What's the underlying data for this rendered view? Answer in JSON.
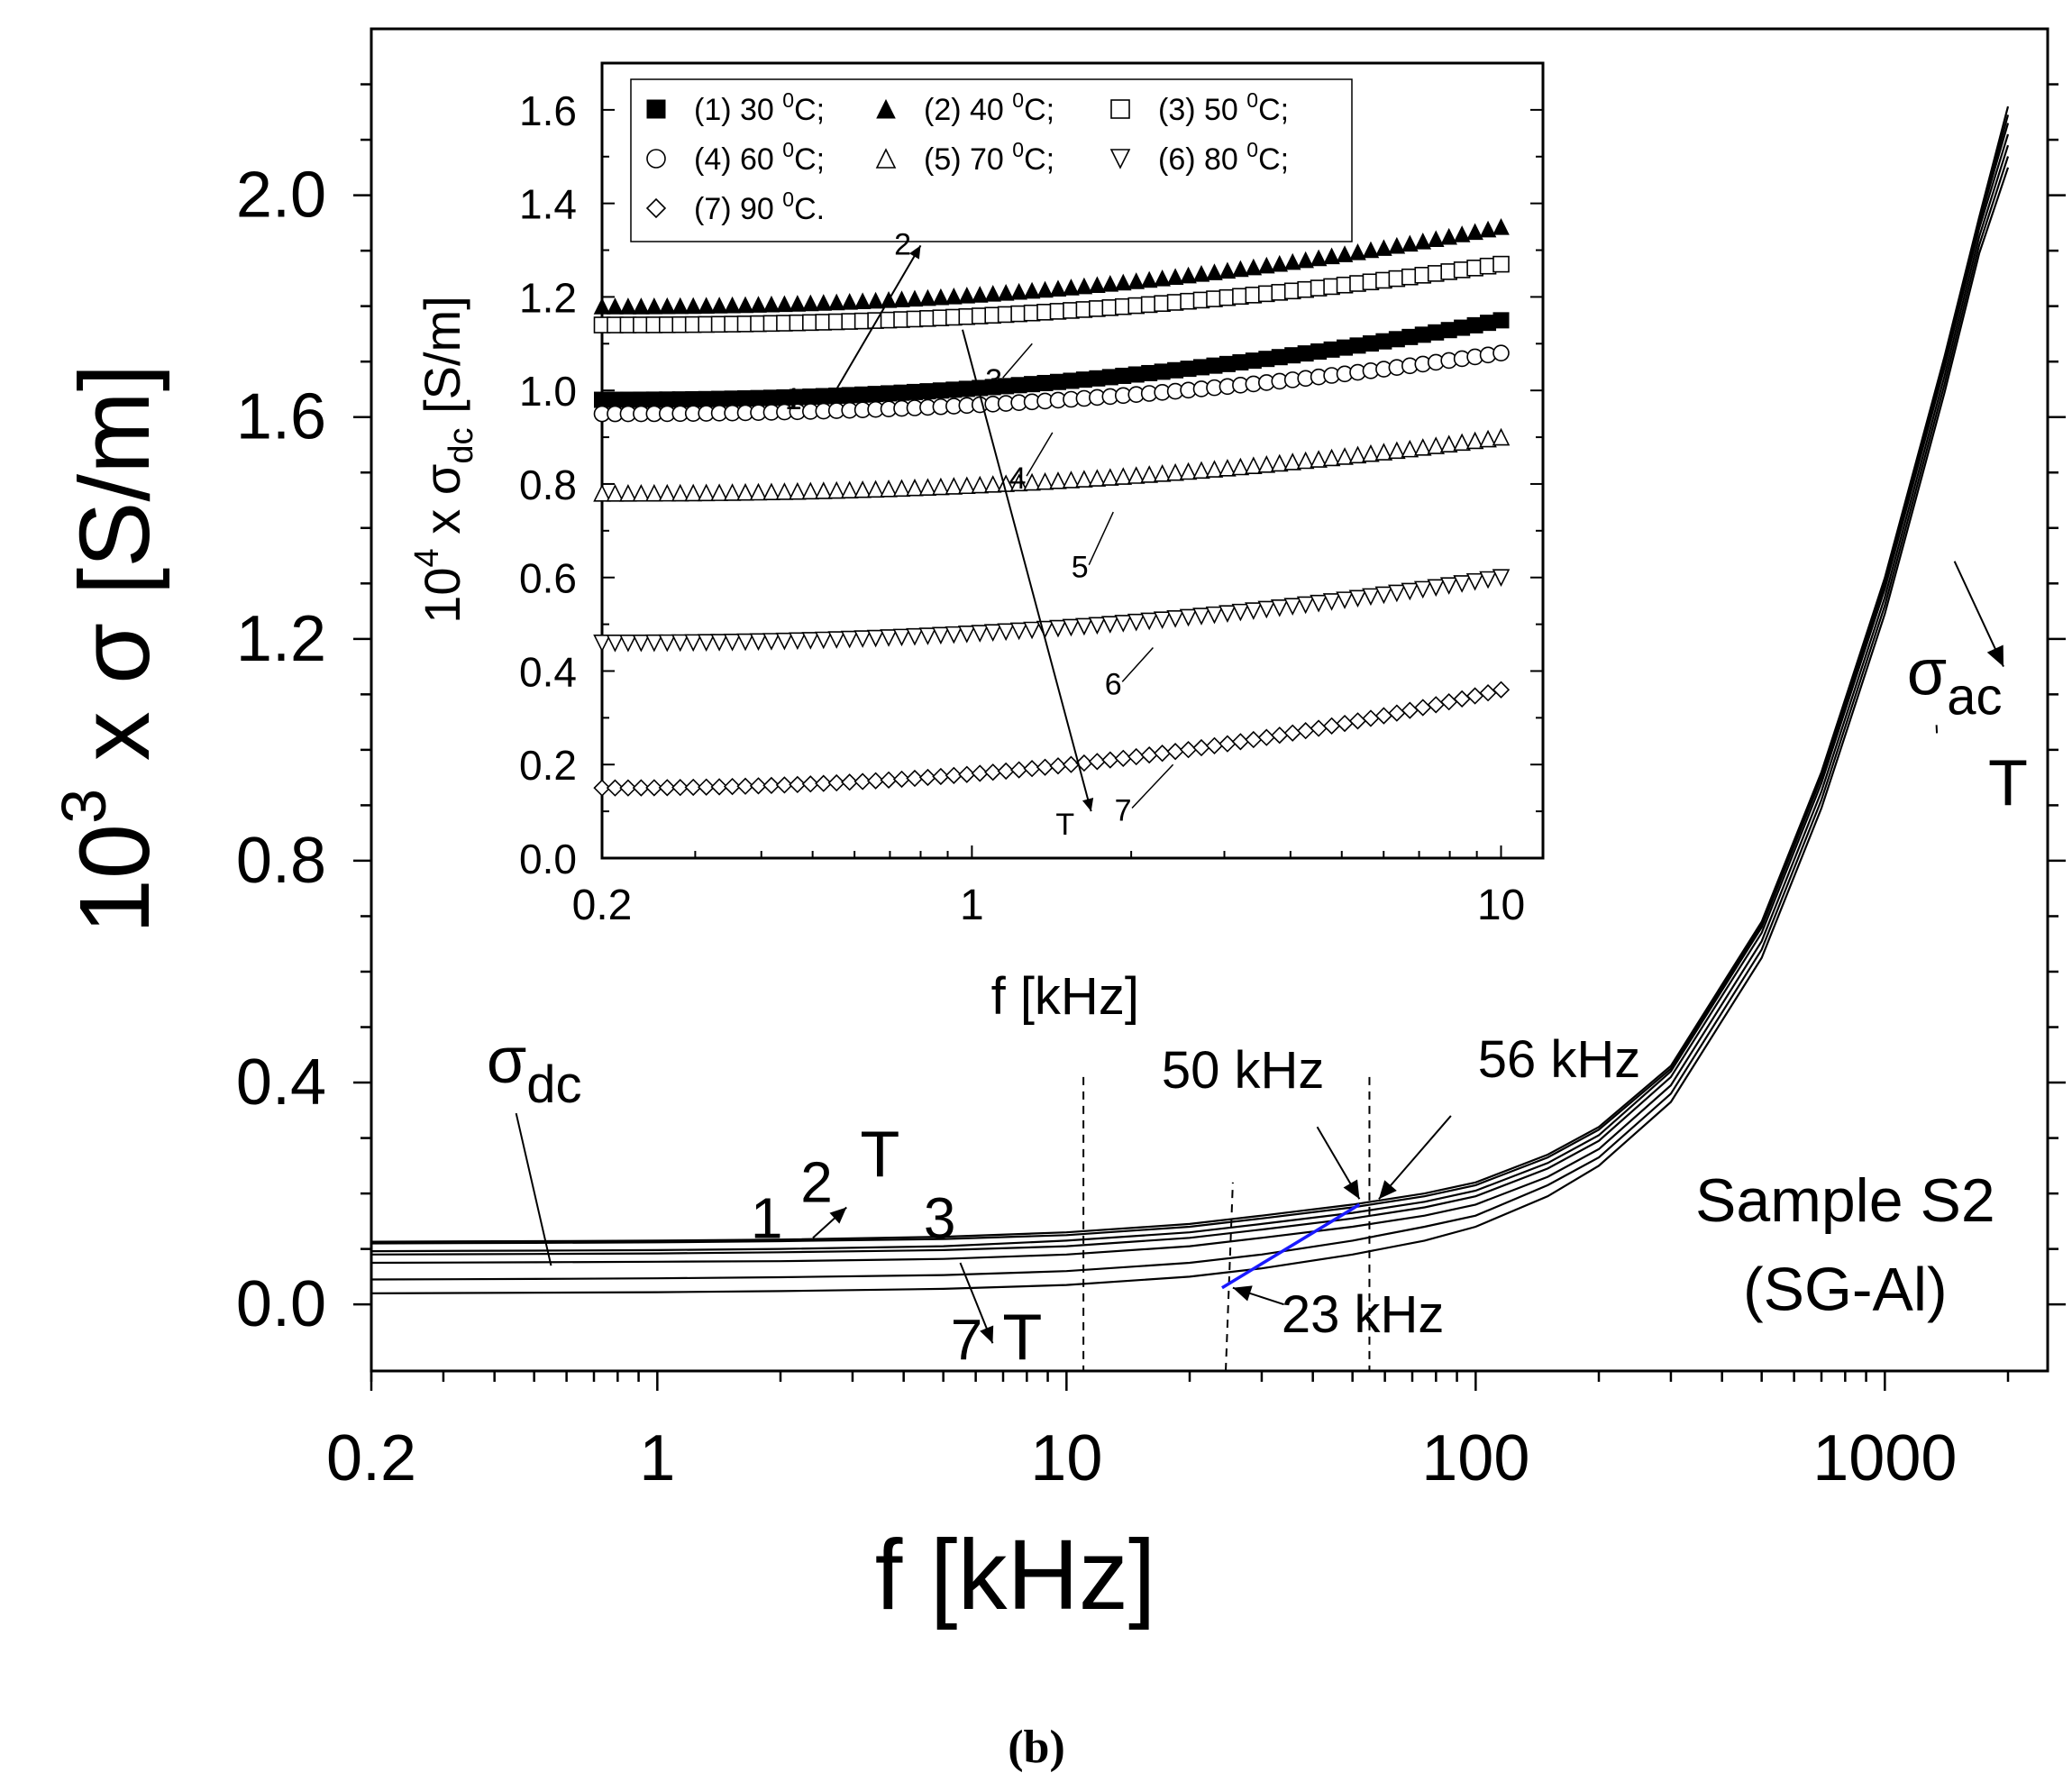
{
  "figure_label": "(b)",
  "chart_data": [
    {
      "id": "main",
      "type": "line",
      "xscale": "log",
      "xlim": [
        0.2,
        2500
      ],
      "ylim": [
        -0.12,
        2.3
      ],
      "xticks": [
        0.2,
        1,
        10,
        100,
        1000
      ],
      "xtick_labels": [
        "0.2",
        "1",
        "10",
        "100",
        "1000"
      ],
      "yticks": [
        0.0,
        0.4,
        0.8,
        1.2,
        1.6,
        2.0
      ],
      "ytick_labels": [
        "0.0",
        "0.4",
        "0.8",
        "1.2",
        "1.6",
        "2.0"
      ],
      "xlabel": "f [kHz]",
      "ylabel": {
        "base": "10",
        "exp": "3",
        "rest": " x σ [S/m]"
      },
      "x": [
        0.2,
        0.5,
        1,
        2,
        5,
        10,
        20,
        30,
        50,
        75,
        100,
        150,
        200,
        300,
        500,
        700,
        1000,
        1400,
        1700,
        2000
      ],
      "series": [
        {
          "name": "1",
          "values": [
            0.096,
            0.097,
            0.098,
            0.1,
            0.105,
            0.115,
            0.13,
            0.145,
            0.165,
            0.185,
            0.205,
            0.255,
            0.305,
            0.42,
            0.68,
            0.95,
            1.3,
            1.7,
            1.95,
            2.13
          ]
        },
        {
          "name": "2",
          "values": [
            0.113,
            0.114,
            0.115,
            0.117,
            0.122,
            0.13,
            0.145,
            0.16,
            0.18,
            0.2,
            0.22,
            0.27,
            0.32,
            0.43,
            0.69,
            0.96,
            1.31,
            1.71,
            1.96,
            2.16
          ]
        },
        {
          "name": "3",
          "values": [
            0.11,
            0.111,
            0.112,
            0.114,
            0.118,
            0.125,
            0.14,
            0.155,
            0.175,
            0.195,
            0.215,
            0.265,
            0.315,
            0.425,
            0.685,
            0.955,
            1.305,
            1.705,
            1.955,
            2.145
          ]
        },
        {
          "name": "4",
          "values": [
            0.09,
            0.091,
            0.092,
            0.094,
            0.098,
            0.105,
            0.12,
            0.135,
            0.155,
            0.175,
            0.195,
            0.245,
            0.295,
            0.41,
            0.67,
            0.94,
            1.29,
            1.69,
            1.94,
            2.11
          ]
        },
        {
          "name": "5",
          "values": [
            0.075,
            0.076,
            0.077,
            0.078,
            0.082,
            0.09,
            0.105,
            0.12,
            0.14,
            0.16,
            0.18,
            0.23,
            0.28,
            0.395,
            0.655,
            0.925,
            1.275,
            1.675,
            1.925,
            2.09
          ]
        },
        {
          "name": "6",
          "values": [
            0.045,
            0.046,
            0.047,
            0.049,
            0.053,
            0.06,
            0.075,
            0.09,
            0.115,
            0.14,
            0.16,
            0.215,
            0.265,
            0.38,
            0.64,
            0.91,
            1.26,
            1.66,
            1.91,
            2.07
          ]
        },
        {
          "name": "7",
          "values": [
            0.02,
            0.021,
            0.022,
            0.024,
            0.028,
            0.035,
            0.05,
            0.065,
            0.09,
            0.115,
            0.14,
            0.195,
            0.25,
            0.365,
            0.625,
            0.895,
            1.245,
            1.645,
            1.895,
            2.05
          ]
        }
      ],
      "dashed_x": [
        11,
        55
      ],
      "dashed_tilted": [
        [
          24.5,
          -0.12
        ],
        [
          25.5,
          0.22
        ]
      ],
      "blue_line": [
        [
          24,
          0.03
        ],
        [
          52,
          0.18
        ]
      ],
      "annotations": {
        "sigma_dc": {
          "symbol": "σ",
          "sub": "dc",
          "x": 0.5,
          "y": 0.4,
          "to": [
            0.55,
            0.07
          ]
        },
        "sigma_ac": {
          "symbol": "σ",
          "sub": "ac",
          "x": 1480,
          "y": 1.1,
          "to": [
            1340,
            1.03
          ]
        },
        "T_ac": {
          "text": "T",
          "x": 2000,
          "y": 0.9,
          "arrow_from": [
            1480,
            1.34
          ],
          "arrow_to": [
            1950,
            1.15
          ]
        },
        "T_dc_up": {
          "text": "T",
          "x": 3.5,
          "y": 0.23,
          "arrow_from": [
            2.4,
            0.12
          ],
          "arrow_to": [
            2.9,
            0.175
          ]
        },
        "T_dc_down": {
          "text": "T",
          "x": 7.8,
          "y": -0.1,
          "arrow_from": [
            5.5,
            0.075
          ],
          "arrow_to": [
            6.6,
            -0.07
          ]
        },
        "lbl_1": {
          "text": "1",
          "x": 1.85,
          "y": 0.12
        },
        "lbl_2": {
          "text": "2",
          "x": 2.45,
          "y": 0.185
        },
        "lbl_3": {
          "text": "3",
          "x": 4.9,
          "y": 0.12
        },
        "lbl_7": {
          "text": "7",
          "x": 5.7,
          "y": -0.1
        },
        "f50": {
          "text": "50 kHz",
          "x": 27,
          "y": 0.39,
          "arrow_from": [
            41,
            0.32
          ],
          "arrow_to": [
            52,
            0.19
          ]
        },
        "f56": {
          "text": "56 kHz",
          "x": 160,
          "y": 0.41,
          "arrow_from": [
            87,
            0.34
          ],
          "arrow_to": [
            58,
            0.19
          ]
        },
        "f23": {
          "text": "23 kHz",
          "x": 53,
          "y": -0.05,
          "arrow_from": [
            34,
            0.0
          ],
          "arrow_to": [
            25.5,
            0.03
          ]
        },
        "sample": {
          "line1": "Sample S2",
          "line2": "(SG-Al)",
          "x": 800,
          "y1": 0.15,
          "y2": -0.01
        }
      }
    },
    {
      "id": "inset",
      "type": "scatter",
      "xscale": "log",
      "xlim": [
        0.2,
        12
      ],
      "ylim": [
        0.0,
        1.7
      ],
      "xticks": [
        0.2,
        1,
        10
      ],
      "xtick_labels": [
        "0.2",
        "1",
        "10"
      ],
      "yticks": [
        0.0,
        0.2,
        0.4,
        0.6,
        0.8,
        1.0,
        1.2,
        1.4,
        1.6
      ],
      "ytick_labels": [
        "0.0",
        "0.2",
        "0.4",
        "0.6",
        "0.8",
        "1.0",
        "1.2",
        "1.4",
        "1.6"
      ],
      "xlabel": "f [kHz]",
      "ylabel": {
        "base": "10",
        "exp": "4",
        "rest": " x σ",
        "sub": "dc",
        "unit": " [S/m]"
      },
      "legend": [
        {
          "text": "(1) 30 ",
          "deg": "0",
          "unit": "C;",
          "marker": "square-filled"
        },
        {
          "text": "(2) 40 ",
          "deg": "0",
          "unit": "C;",
          "marker": "triangle-filled"
        },
        {
          "text": "(3) 50 ",
          "deg": "0",
          "unit": "C;",
          "marker": "square-open"
        },
        {
          "text": "(4) 60 ",
          "deg": "0",
          "unit": "C;",
          "marker": "circle-open"
        },
        {
          "text": "(5) 70 ",
          "deg": "0",
          "unit": "C;",
          "marker": "triangle-open"
        },
        {
          "text": "(6) 80 ",
          "deg": "0",
          "unit": "C;",
          "marker": "triangle-down-open"
        },
        {
          "text": "(7) 90 ",
          "deg": "0",
          "unit": "C.",
          "marker": "diamond-open"
        }
      ],
      "series": [
        {
          "name": "1",
          "marker": "square-filled",
          "y_start": 0.98,
          "y_end": 1.15,
          "npoints": 70
        },
        {
          "name": "2",
          "marker": "triangle-filled",
          "y_start": 1.18,
          "y_end": 1.35,
          "npoints": 70
        },
        {
          "name": "3",
          "marker": "square-open",
          "y_start": 1.14,
          "y_end": 1.27,
          "npoints": 70
        },
        {
          "name": "4",
          "marker": "circle-open",
          "y_start": 0.95,
          "y_end": 1.08,
          "npoints": 70
        },
        {
          "name": "5",
          "marker": "triangle-open",
          "y_start": 0.78,
          "y_end": 0.9,
          "npoints": 70
        },
        {
          "name": "6",
          "marker": "triangle-down-open",
          "y_start": 0.46,
          "y_end": 0.6,
          "npoints": 70
        },
        {
          "name": "7",
          "marker": "diamond-open",
          "y_start": 0.15,
          "y_end": 0.36,
          "npoints": 70
        }
      ],
      "annotations": {
        "labels": [
          {
            "text": "1",
            "x": 0.46,
            "y": 0.96,
            "line_to": [
              0.54,
              1.0
            ]
          },
          {
            "text": "2",
            "x": 0.74,
            "y": 1.29
          },
          {
            "text": "3",
            "x": 1.1,
            "y": 1.0,
            "line_to": [
              1.3,
              1.1
            ]
          },
          {
            "text": "4",
            "x": 1.22,
            "y": 0.79,
            "line_to": [
              1.42,
              0.91
            ]
          },
          {
            "text": "5",
            "x": 1.6,
            "y": 0.6,
            "line_to": [
              1.85,
              0.74
            ]
          },
          {
            "text": "6",
            "x": 1.85,
            "y": 0.35,
            "line_to": [
              2.2,
              0.45
            ]
          },
          {
            "text": "7",
            "x": 1.93,
            "y": 0.08,
            "line_to": [
              2.4,
              0.2
            ]
          },
          {
            "text": "T",
            "x": 1.5,
            "y": 0.05
          }
        ],
        "arrow_2": {
          "from": [
            0.54,
            0.98
          ],
          "to": [
            0.8,
            1.31
          ]
        },
        "arrow_T": {
          "from": [
            0.96,
            1.13
          ],
          "to": [
            1.68,
            0.1
          ]
        }
      }
    }
  ]
}
